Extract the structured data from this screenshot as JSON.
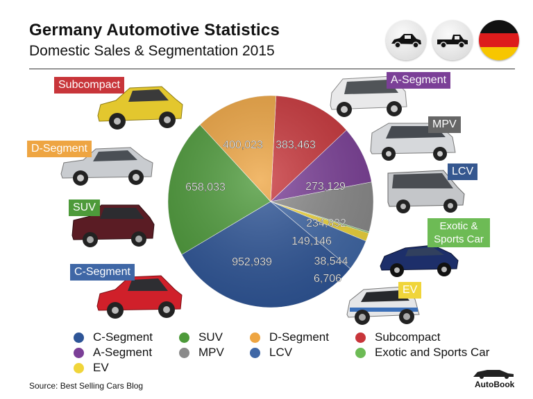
{
  "header": {
    "title": "Germany Automotive Statistics",
    "subtitle": "Domestic Sales & Segmentation 2015"
  },
  "icons": [
    "sedan-icon",
    "pickup-icon",
    "germany-flag-icon"
  ],
  "colors": {
    "c_segment": "#2e5597",
    "suv": "#4d9a3a",
    "d_segment": "#eea542",
    "subcompact": "#c8353a",
    "a_segment": "#7b3f97",
    "mpv": "#8a8a8a",
    "lcv": "#3f67a6",
    "exotic": "#6dbb55",
    "ev": "#f0d53a"
  },
  "chart_data": {
    "type": "pie",
    "title": "Germany Automotive Statistics",
    "subtitle": "Domestic Sales & Segmentation 2015",
    "slices": [
      {
        "name": "Subcompact",
        "value": 383463,
        "label": "383,463",
        "color": "#c8353a"
      },
      {
        "name": "A-Segment",
        "value": 273129,
        "label": "273,129",
        "color": "#7b3f97"
      },
      {
        "name": "MPV",
        "value": 234832,
        "label": "234,832",
        "color": "#8a8a8a"
      },
      {
        "name": "Exotic and Sports Car",
        "value": 6706,
        "label": "6,706",
        "color": "#6dbb55"
      },
      {
        "name": "EV",
        "value": 38544,
        "label": "38,544",
        "color": "#f0d53a"
      },
      {
        "name": "LCV",
        "value": 149146,
        "label": "149,146",
        "color": "#3f67a6"
      },
      {
        "name": "C-Segment",
        "value": 952939,
        "label": "952,939",
        "color": "#2e5597"
      },
      {
        "name": "SUV",
        "value": 658033,
        "label": "658,033",
        "color": "#4d9a3a"
      },
      {
        "name": "D-Segment",
        "value": 400023,
        "label": "400,023",
        "color": "#eea542"
      }
    ],
    "legend": [
      {
        "label": "C-Segment",
        "color": "#2e5597"
      },
      {
        "label": "SUV",
        "color": "#4d9a3a"
      },
      {
        "label": "D-Segment",
        "color": "#eea542"
      },
      {
        "label": "Subcompact",
        "color": "#c8353a"
      },
      {
        "label": "A-Segment",
        "color": "#7b3f97"
      },
      {
        "label": "MPV",
        "color": "#8a8a8a"
      },
      {
        "label": "LCV",
        "color": "#3f67a6"
      },
      {
        "label": "Exotic and Sports Car",
        "color": "#6dbb55"
      },
      {
        "label": "EV",
        "color": "#f0d53a"
      }
    ]
  },
  "tags": {
    "subcompact": "Subcompact",
    "d_segment": "D-Segment",
    "suv": "SUV",
    "c_segment": "C-Segment",
    "a_segment": "A-Segment",
    "mpv": "MPV",
    "lcv": "LCV",
    "exotic_line1": "Exotic &",
    "exotic_line2": "Sports Car",
    "ev": "EV"
  },
  "footer": {
    "source": "Source:  Best Selling Cars Blog",
    "brand": "AutoBook"
  }
}
